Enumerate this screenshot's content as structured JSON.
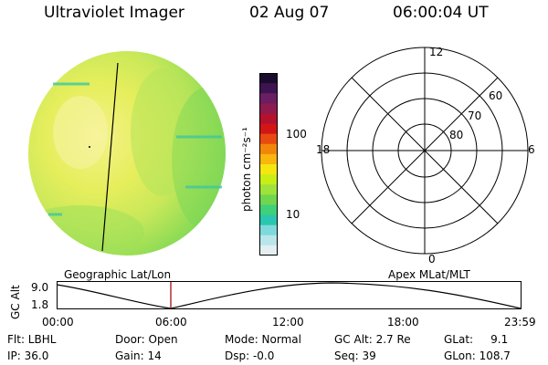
{
  "header": {
    "instrument": "Ultraviolet Imager",
    "date": "02 Aug 07",
    "time": "06:00:04 UT"
  },
  "colorbar": {
    "unit_label": "photon cm⁻²s⁻¹",
    "tick_100": "100",
    "tick_10": "10",
    "colors": [
      "#1a0b2e",
      "#3c1450",
      "#6a1e63",
      "#8e1a4e",
      "#b3122e",
      "#d21616",
      "#e84a10",
      "#f2860a",
      "#f9b60c",
      "#f5e60f",
      "#c9ee17",
      "#9ee33a",
      "#6fd64d",
      "#3fd07a",
      "#29c7b0",
      "#7fd9dc",
      "#b8e6ea",
      "#e3eff0"
    ]
  },
  "polar_plot": {
    "mlt_top": "12",
    "mlt_left": "18",
    "mlt_right": "6",
    "mlt_bottom": "0",
    "lat_60": "60",
    "lat_70": "70",
    "lat_80": "80"
  },
  "timeline": {
    "left_label": "Geographic Lat/Lon",
    "right_label": "Apex MLat/MLT",
    "axis_label": "GC Alt",
    "y_max": "9.0",
    "y_min": "1.8",
    "t0": "00:00",
    "t1": "06:00",
    "t2": "12:00",
    "t3": "18:00",
    "t4": "23:59",
    "marker_color": "#b03030"
  },
  "status": {
    "filter": "Flt: LBHL",
    "ip": "IP: 36.0",
    "door": "Door: Open",
    "gain": "Gain: 14",
    "mode": "Mode: Normal",
    "dsp": "Dsp:   -0.0",
    "gc_alt": "GC Alt: 2.7 Re",
    "seq": "Seq: 39",
    "glat": "GLat:     9.1",
    "glon": "GLon: 108.7"
  }
}
